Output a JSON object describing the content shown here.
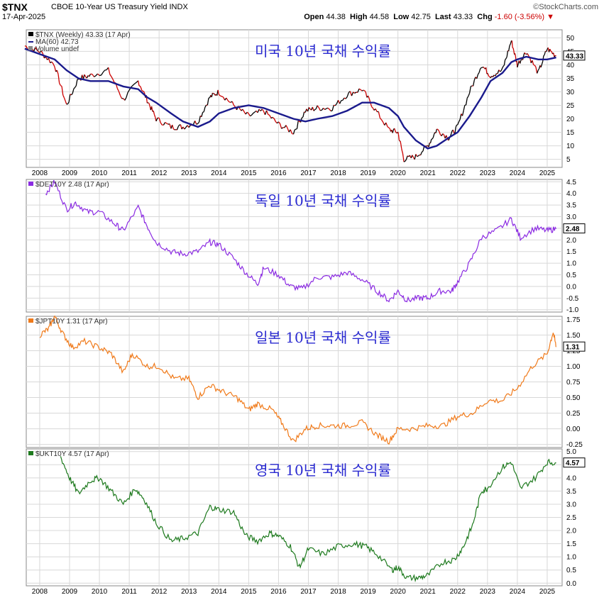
{
  "header": {
    "symbol": "$TNX",
    "description": "CBOE 10-Year US Treasury Yield INDX",
    "source": "©StockCharts.com",
    "date": "17-Apr-2025",
    "open_label": "Open",
    "open": "44.38",
    "high_label": "High",
    "high": "44.58",
    "low_label": "Low",
    "low": "42.75",
    "last_label": "Last",
    "last": "43.33",
    "chg_label": "Chg",
    "chg": "-1.60 (-3.56%)"
  },
  "colors": {
    "us": "#000000",
    "us_down": "#cc0000",
    "ma": "#1a1a8c",
    "de": "#8b2be2",
    "jp": "#f07a1a",
    "uk": "#1e7a1e",
    "grid": "#d8d8d8",
    "title": "#2a2ad0"
  },
  "chart_data": [
    {
      "type": "line",
      "legend": [
        "$TNX (Weekly) 43.33 (17 Apr)",
        "MA(60) 42.73",
        "Volume undef"
      ],
      "title": "미국 10년 국채 수익률",
      "last_value": "43.33",
      "ylim": [
        2,
        53
      ],
      "yticks": [
        5,
        10,
        15,
        20,
        25,
        30,
        35,
        40,
        45,
        50
      ],
      "x": [
        2007.5,
        2008.0,
        2008.5,
        2008.9,
        2009.3,
        2009.7,
        2010.3,
        2010.8,
        2011.3,
        2011.6,
        2011.9,
        2012.4,
        2012.8,
        2013.3,
        2013.7,
        2014.0,
        2014.5,
        2015.0,
        2015.5,
        2016.0,
        2016.5,
        2016.9,
        2017.3,
        2017.8,
        2018.3,
        2018.8,
        2019.2,
        2019.7,
        2020.0,
        2020.2,
        2020.6,
        2021.0,
        2021.3,
        2021.7,
        2022.0,
        2022.4,
        2022.8,
        2023.1,
        2023.5,
        2023.8,
        2024.0,
        2024.3,
        2024.7,
        2025.0,
        2025.3
      ],
      "values": [
        47,
        45,
        40,
        25,
        35,
        36,
        38,
        27,
        34,
        27,
        20,
        17,
        17,
        19,
        28,
        30,
        25,
        21,
        23,
        18,
        15,
        23,
        24,
        24,
        29,
        31,
        24,
        16,
        15,
        5,
        6,
        10,
        16,
        13,
        17,
        30,
        40,
        36,
        38,
        49,
        40,
        45,
        37,
        46,
        43.33
      ],
      "ma_values": [
        46,
        44,
        42,
        38,
        35,
        34,
        34,
        32,
        31,
        28,
        26,
        22,
        19,
        17,
        19,
        22,
        24,
        25,
        24,
        22,
        20,
        19,
        20,
        21,
        23,
        26,
        26,
        24,
        21,
        17,
        12,
        9,
        10,
        13,
        15,
        21,
        28,
        34,
        37,
        41,
        42,
        43,
        42,
        42,
        42.73
      ]
    },
    {
      "type": "line",
      "legend": [
        "$DET10Y 2.48 (17 Apr)"
      ],
      "title": "독일 10년 국채 수익률",
      "last_value": "2.48",
      "ylim": [
        -1.1,
        4.6
      ],
      "yticks": [
        "4.5",
        "4.0",
        "3.5",
        "3.0",
        "2.5",
        "2.0",
        "1.5",
        "1.0",
        "0.5",
        "0.0",
        "-0.5",
        "-1.0"
      ],
      "x": [
        2008.2,
        2008.5,
        2008.9,
        2009.2,
        2009.6,
        2010.0,
        2010.5,
        2010.8,
        2011.3,
        2011.6,
        2011.9,
        2012.4,
        2012.8,
        2013.3,
        2013.7,
        2014.0,
        2014.5,
        2014.9,
        2015.3,
        2015.5,
        2016.0,
        2016.4,
        2016.8,
        2017.3,
        2017.8,
        2018.3,
        2018.8,
        2019.3,
        2019.7,
        2020.0,
        2020.3,
        2020.7,
        2021.0,
        2021.4,
        2021.8,
        2022.0,
        2022.4,
        2022.8,
        2023.3,
        2023.8,
        2024.1,
        2024.6,
        2025.0,
        2025.3
      ],
      "values": [
        4.0,
        4.5,
        3.3,
        3.6,
        3.2,
        3.2,
        2.7,
        2.4,
        3.4,
        2.6,
        1.9,
        1.5,
        1.4,
        1.5,
        1.9,
        1.8,
        1.2,
        0.6,
        0.1,
        0.8,
        0.5,
        0.0,
        -0.1,
        0.4,
        0.4,
        0.6,
        0.3,
        -0.2,
        -0.6,
        -0.2,
        -0.6,
        -0.5,
        -0.5,
        -0.2,
        -0.2,
        0.2,
        1.0,
        2.1,
        2.4,
        2.9,
        2.1,
        2.5,
        2.4,
        2.48
      ]
    },
    {
      "type": "line",
      "legend": [
        "$JPT10Y 1.31 (17 Apr)"
      ],
      "title": "일본 10년 국채 수익률",
      "last_value": "1.31",
      "ylim": [
        -0.3,
        1.8
      ],
      "yticks": [
        "1.75",
        "1.50",
        "1.25",
        "1.00",
        "0.75",
        "0.50",
        "0.25",
        "0.00",
        "-0.25"
      ],
      "x": [
        2008.0,
        2008.3,
        2008.5,
        2008.8,
        2009.1,
        2009.5,
        2010.0,
        2010.4,
        2010.8,
        2011.1,
        2011.6,
        2012.0,
        2012.5,
        2013.0,
        2013.3,
        2013.7,
        2014.1,
        2014.6,
        2015.0,
        2015.3,
        2015.8,
        2016.1,
        2016.5,
        2016.9,
        2017.3,
        2017.8,
        2018.3,
        2018.8,
        2019.3,
        2019.7,
        2020.0,
        2020.5,
        2021.0,
        2021.5,
        2022.0,
        2022.5,
        2023.0,
        2023.5,
        2024.0,
        2024.5,
        2025.0,
        2025.2,
        2025.3
      ],
      "values": [
        1.5,
        1.6,
        1.8,
        1.5,
        1.3,
        1.4,
        1.3,
        1.2,
        0.9,
        1.2,
        1.0,
        1.0,
        0.8,
        0.8,
        0.5,
        0.7,
        0.6,
        0.5,
        0.3,
        0.4,
        0.3,
        0.1,
        -0.2,
        0.0,
        0.05,
        0.05,
        0.05,
        0.1,
        -0.1,
        -0.2,
        0.0,
        0.0,
        0.05,
        0.05,
        0.2,
        0.25,
        0.45,
        0.45,
        0.65,
        1.0,
        1.2,
        1.55,
        1.31
      ]
    },
    {
      "type": "line",
      "legend": [
        "$UKT10Y 4.57 (17 Apr)"
      ],
      "title": "영국 10년 국채 수익률",
      "last_value": "4.57",
      "ylim": [
        -0.1,
        5.1
      ],
      "yticks": [
        "5.0",
        "4.5",
        "4.0",
        "3.5",
        "3.0",
        "2.5",
        "2.0",
        "1.5",
        "1.0",
        "0.5",
        "0.0"
      ],
      "x": [
        2008.7,
        2009.0,
        2009.3,
        2009.7,
        2010.0,
        2010.4,
        2010.8,
        2011.2,
        2011.5,
        2011.9,
        2012.4,
        2012.8,
        2013.3,
        2013.7,
        2014.0,
        2014.5,
        2014.9,
        2015.3,
        2015.7,
        2016.0,
        2016.4,
        2016.7,
        2017.0,
        2017.5,
        2018.0,
        2018.5,
        2018.9,
        2019.3,
        2019.8,
        2020.0,
        2020.3,
        2020.7,
        2021.0,
        2021.5,
        2021.9,
        2022.2,
        2022.5,
        2022.8,
        2023.0,
        2023.5,
        2023.8,
        2024.1,
        2024.6,
        2025.0,
        2025.3
      ],
      "values": [
        4.8,
        4.0,
        3.4,
        3.9,
        4.0,
        3.5,
        3.0,
        3.6,
        3.2,
        2.3,
        1.6,
        1.7,
        1.9,
        2.9,
        2.8,
        2.7,
        1.8,
        1.6,
        1.9,
        1.8,
        1.4,
        0.6,
        1.3,
        1.1,
        1.4,
        1.5,
        1.4,
        1.1,
        0.5,
        0.6,
        0.2,
        0.2,
        0.3,
        0.8,
        0.9,
        1.4,
        2.2,
        3.5,
        3.6,
        4.4,
        4.6,
        3.6,
        4.0,
        4.6,
        4.57
      ]
    }
  ],
  "x_axis_years": [
    "2008",
    "2009",
    "2010",
    "2011",
    "2012",
    "2013",
    "2014",
    "2015",
    "2016",
    "2017",
    "2018",
    "2019",
    "2020",
    "2021",
    "2022",
    "2023",
    "2024",
    "2025"
  ]
}
